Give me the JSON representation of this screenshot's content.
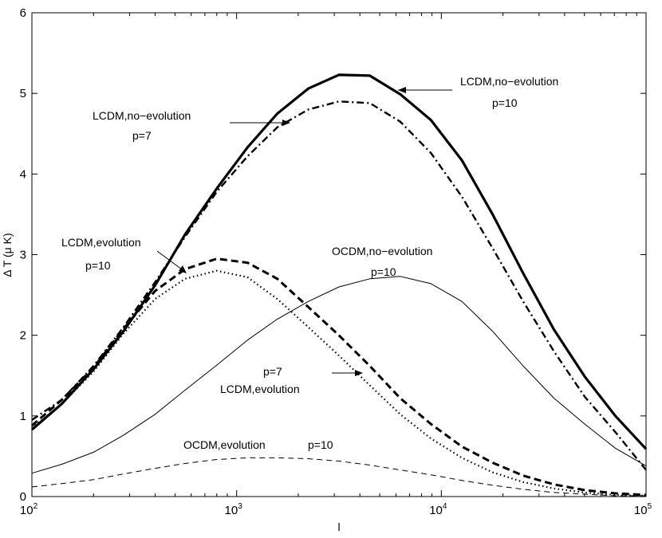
{
  "chart_data": {
    "type": "line",
    "title": "",
    "xlabel": "l",
    "ylabel": "Δ T  (μ K)",
    "xscale": "log",
    "xlim": [
      100,
      100000
    ],
    "ylim": [
      0,
      6
    ],
    "grid": false,
    "legend": "none",
    "x_ticks": [
      {
        "base": "10",
        "exp": "2",
        "value": 100
      },
      {
        "base": "10",
        "exp": "3",
        "value": 1000
      },
      {
        "base": "10",
        "exp": "4",
        "value": 10000
      },
      {
        "base": "10",
        "exp": "5",
        "value": 100000
      }
    ],
    "y_ticks": [
      "0",
      "1",
      "2",
      "3",
      "4",
      "5",
      "6"
    ],
    "series": [
      {
        "name": "LCDM,no-evolution p=10",
        "style": "solid-thick",
        "points": [
          [
            100,
            0.83
          ],
          [
            140,
            1.15
          ],
          [
            200,
            1.58
          ],
          [
            280,
            2.05
          ],
          [
            400,
            2.62
          ],
          [
            560,
            3.25
          ],
          [
            800,
            3.82
          ],
          [
            1130,
            4.33
          ],
          [
            1580,
            4.75
          ],
          [
            2240,
            5.06
          ],
          [
            3160,
            5.23
          ],
          [
            4470,
            5.22
          ],
          [
            6300,
            4.99
          ],
          [
            8900,
            4.67
          ],
          [
            12600,
            4.17
          ],
          [
            17800,
            3.5
          ],
          [
            25100,
            2.77
          ],
          [
            35500,
            2.07
          ],
          [
            50100,
            1.49
          ],
          [
            70800,
            1.0
          ],
          [
            100000,
            0.59
          ]
        ]
      },
      {
        "name": "LCDM,no-evolution p=7",
        "style": "dashdot-thick",
        "points": [
          [
            100,
            0.95
          ],
          [
            140,
            1.2
          ],
          [
            200,
            1.62
          ],
          [
            280,
            2.1
          ],
          [
            400,
            2.66
          ],
          [
            560,
            3.22
          ],
          [
            800,
            3.78
          ],
          [
            1130,
            4.22
          ],
          [
            1580,
            4.58
          ],
          [
            2240,
            4.8
          ],
          [
            3160,
            4.9
          ],
          [
            4470,
            4.88
          ],
          [
            6300,
            4.65
          ],
          [
            8900,
            4.26
          ],
          [
            12600,
            3.72
          ],
          [
            17800,
            3.08
          ],
          [
            25100,
            2.42
          ],
          [
            35500,
            1.8
          ],
          [
            50100,
            1.24
          ],
          [
            70800,
            0.8
          ],
          [
            100000,
            0.33
          ]
        ]
      },
      {
        "name": "LCDM,evolution p=10",
        "style": "dashed-thick",
        "points": [
          [
            100,
            0.88
          ],
          [
            140,
            1.2
          ],
          [
            200,
            1.6
          ],
          [
            280,
            2.08
          ],
          [
            400,
            2.55
          ],
          [
            560,
            2.82
          ],
          [
            800,
            2.95
          ],
          [
            1130,
            2.9
          ],
          [
            1580,
            2.7
          ],
          [
            2240,
            2.35
          ],
          [
            3160,
            2.0
          ],
          [
            4470,
            1.62
          ],
          [
            6300,
            1.22
          ],
          [
            8900,
            0.9
          ],
          [
            12600,
            0.62
          ],
          [
            17800,
            0.42
          ],
          [
            25100,
            0.26
          ],
          [
            35500,
            0.15
          ],
          [
            50100,
            0.08
          ],
          [
            70800,
            0.04
          ],
          [
            100000,
            0.02
          ]
        ]
      },
      {
        "name": "LCDM,evolution p=7",
        "style": "dotted-thick",
        "points": [
          [
            100,
            0.85
          ],
          [
            140,
            1.15
          ],
          [
            200,
            1.55
          ],
          [
            280,
            2.02
          ],
          [
            400,
            2.45
          ],
          [
            560,
            2.7
          ],
          [
            800,
            2.8
          ],
          [
            1130,
            2.72
          ],
          [
            1580,
            2.45
          ],
          [
            2240,
            2.1
          ],
          [
            3160,
            1.75
          ],
          [
            4470,
            1.38
          ],
          [
            6300,
            1.02
          ],
          [
            8900,
            0.72
          ],
          [
            12600,
            0.48
          ],
          [
            17800,
            0.3
          ],
          [
            25100,
            0.18
          ],
          [
            35500,
            0.1
          ],
          [
            50100,
            0.05
          ],
          [
            70800,
            0.02
          ],
          [
            100000,
            0.01
          ]
        ]
      },
      {
        "name": "OCDM,no-evolution p=10",
        "style": "solid-thin",
        "points": [
          [
            100,
            0.29
          ],
          [
            140,
            0.4
          ],
          [
            200,
            0.55
          ],
          [
            280,
            0.76
          ],
          [
            400,
            1.02
          ],
          [
            560,
            1.32
          ],
          [
            800,
            1.63
          ],
          [
            1130,
            1.94
          ],
          [
            1580,
            2.2
          ],
          [
            2240,
            2.42
          ],
          [
            3160,
            2.6
          ],
          [
            4470,
            2.7
          ],
          [
            6300,
            2.73
          ],
          [
            8900,
            2.64
          ],
          [
            12600,
            2.42
          ],
          [
            17800,
            2.05
          ],
          [
            25100,
            1.62
          ],
          [
            35500,
            1.22
          ],
          [
            50100,
            0.9
          ],
          [
            70800,
            0.6
          ],
          [
            100000,
            0.38
          ]
        ]
      },
      {
        "name": "OCDM,evolution p=10",
        "style": "dashed-thin",
        "points": [
          [
            100,
            0.12
          ],
          [
            140,
            0.16
          ],
          [
            200,
            0.21
          ],
          [
            280,
            0.28
          ],
          [
            400,
            0.35
          ],
          [
            560,
            0.41
          ],
          [
            800,
            0.46
          ],
          [
            1130,
            0.48
          ],
          [
            1580,
            0.48
          ],
          [
            2240,
            0.47
          ],
          [
            3160,
            0.44
          ],
          [
            4470,
            0.39
          ],
          [
            6300,
            0.33
          ],
          [
            8900,
            0.27
          ],
          [
            12600,
            0.2
          ],
          [
            17800,
            0.14
          ],
          [
            25100,
            0.09
          ],
          [
            35500,
            0.05
          ],
          [
            50100,
            0.03
          ],
          [
            70800,
            0.01
          ],
          [
            100000,
            0.01
          ]
        ]
      }
    ],
    "annotations": [
      {
        "id": "lcdm-noevo-p10",
        "lines": [
          "LCDM,no−evolution",
          "p=10"
        ],
        "arrow_to": [
          4500,
          5.05
        ]
      },
      {
        "id": "lcdm-noevo-p7",
        "lines": [
          "LCDM,no−evolution",
          "p=7"
        ],
        "arrow_to": [
          2800,
          4.65
        ]
      },
      {
        "id": "lcdm-evo-p10",
        "lines": [
          "LCDM,evolution",
          "p=10"
        ],
        "arrow_to": [
          650,
          2.8
        ]
      },
      {
        "id": "ocdm-noevo-p10",
        "lines": [
          "OCDM,no−evolution",
          "p=10"
        ],
        "arrow_to": null
      },
      {
        "id": "lcdm-evo-p7",
        "lines": [
          "p=7",
          "LCDM,evolution"
        ],
        "arrow_to": [
          6400,
          1.55
        ]
      },
      {
        "id": "ocdm-evo-p10",
        "lines": [
          "OCDM,evolution",
          "p=10"
        ],
        "arrow_to": null
      }
    ]
  }
}
